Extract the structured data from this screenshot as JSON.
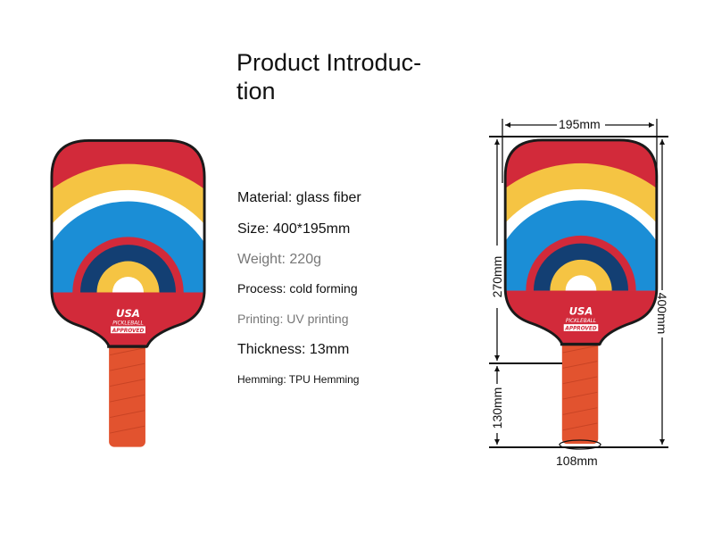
{
  "title": "Product Introduction",
  "title_line1": "Product Introduc-",
  "title_line2": "tion",
  "specs": {
    "material": "Material: glass fiber",
    "size": "Size: 400*195mm",
    "weight": "Weight: 220g",
    "process": "Process: cold forming",
    "printing": "Printing: UV printing",
    "thickness": "Thickness: 13mm",
    "hemming": "Hemming: TPU Hemming"
  },
  "paddle_logo": {
    "line1": "USA",
    "line2": "PICKLEBALL",
    "line3": "APPROVED"
  },
  "dimensions": {
    "width": "195mm",
    "head_length": "270mm",
    "total_length": "400mm",
    "handle_length": "130mm",
    "grip_circumference": "108mm"
  },
  "colors": {
    "red": "#d22a3a",
    "yellow": "#f5c443",
    "blue": "#1b8ed6",
    "navy": "#133f73",
    "grip": "#e2532f"
  }
}
